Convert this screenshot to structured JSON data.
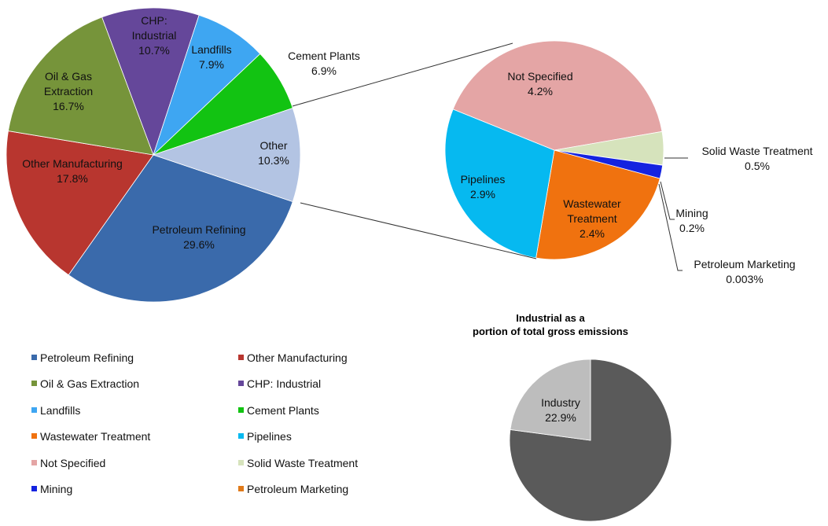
{
  "chart_data": [
    {
      "type": "pie",
      "categories": [
        "Petroleum Refining",
        "Other Manufacturing",
        "Oil & Gas Extraction",
        "CHP: Industrial",
        "Landfills",
        "Cement Plants",
        "Other"
      ],
      "values": [
        29.6,
        17.8,
        16.7,
        10.7,
        7.9,
        6.9,
        10.3
      ],
      "value_labels": [
        "29.6%",
        "17.8%",
        "16.7%",
        "10.7%",
        "7.9%",
        "6.9%",
        "10.3%"
      ],
      "colors": [
        "#3a6aab",
        "#b8362f",
        "#76943a",
        "#65479a",
        "#3ea6f2",
        "#12c312",
        "#b3c4e3"
      ],
      "legend": [
        {
          "name": "Petroleum Refining",
          "color": "#3a6aab"
        },
        {
          "name": "Other Manufacturing",
          "color": "#b8362f"
        },
        {
          "name": "Oil & Gas Extraction",
          "color": "#76943a"
        },
        {
          "name": "CHP: Industrial",
          "color": "#65479a"
        },
        {
          "name": "Landfills",
          "color": "#3ea6f2"
        },
        {
          "name": "Cement Plants",
          "color": "#12c312"
        },
        {
          "name": "Wastewater Treatment",
          "color": "#f0720f"
        },
        {
          "name": "Pipelines",
          "color": "#06b9f0"
        },
        {
          "name": "Not Specified",
          "color": "#e4a5a5"
        },
        {
          "name": "Solid Waste Treatment",
          "color": "#d6e3bc"
        },
        {
          "name": "Mining",
          "color": "#1423e0"
        },
        {
          "name": "Petroleum Marketing",
          "color": "#e07a1a"
        }
      ]
    },
    {
      "type": "pie",
      "categories": [
        "Wastewater Treatment",
        "Pipelines",
        "Not Specified",
        "Solid Waste Treatment",
        "Petroleum Marketing",
        "Mining"
      ],
      "values": [
        2.4,
        2.9,
        4.2,
        0.5,
        0.003,
        0.2
      ],
      "value_labels": [
        "2.4%",
        "2.9%",
        "4.2%",
        "0.5%",
        "0.003%",
        "0.2%"
      ],
      "colors": [
        "#f0720f",
        "#06b9f0",
        "#e4a5a5",
        "#d6e3bc",
        "#e07a1a",
        "#1423e0"
      ]
    },
    {
      "type": "pie",
      "title": [
        "Industrial as a",
        "portion of total gross emissions"
      ],
      "categories": [
        null,
        "Industry"
      ],
      "values": [
        77.1,
        22.9
      ],
      "value_labels": [
        null,
        "22.9%"
      ],
      "colors": [
        "#5a5a5a",
        "#bdbdbd"
      ]
    }
  ]
}
